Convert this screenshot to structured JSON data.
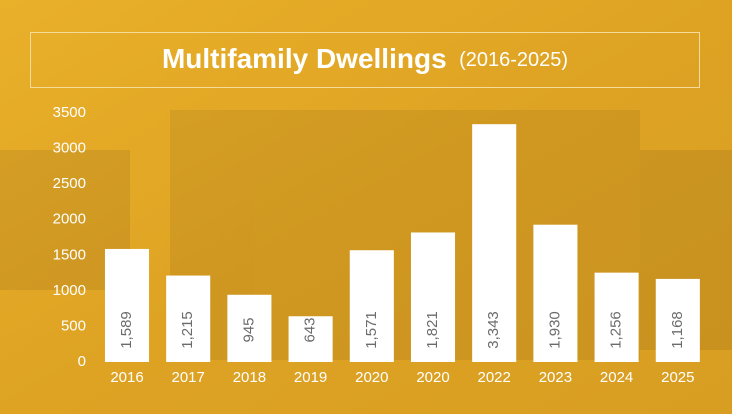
{
  "chart_data": {
    "type": "bar",
    "title": "Multifamily Dwellings",
    "subtitle": "(2016-2025)",
    "categories": [
      "2016",
      "2017",
      "2018",
      "2019",
      "2020",
      "2020",
      "2022",
      "2023",
      "2024",
      "2025"
    ],
    "values": [
      1589,
      1215,
      945,
      643,
      1571,
      1821,
      3343,
      1930,
      1256,
      1168
    ],
    "value_labels": [
      "1,589",
      "1,215",
      "945",
      "643",
      "1,571",
      "1,821",
      "3,343",
      "1,930",
      "1,256",
      "1,168"
    ],
    "color": "#ffffff",
    "ylim": [
      0,
      3500
    ],
    "yticks": [
      0,
      500,
      1000,
      1500,
      2000,
      2500,
      3000,
      3500
    ],
    "grid": false
  }
}
